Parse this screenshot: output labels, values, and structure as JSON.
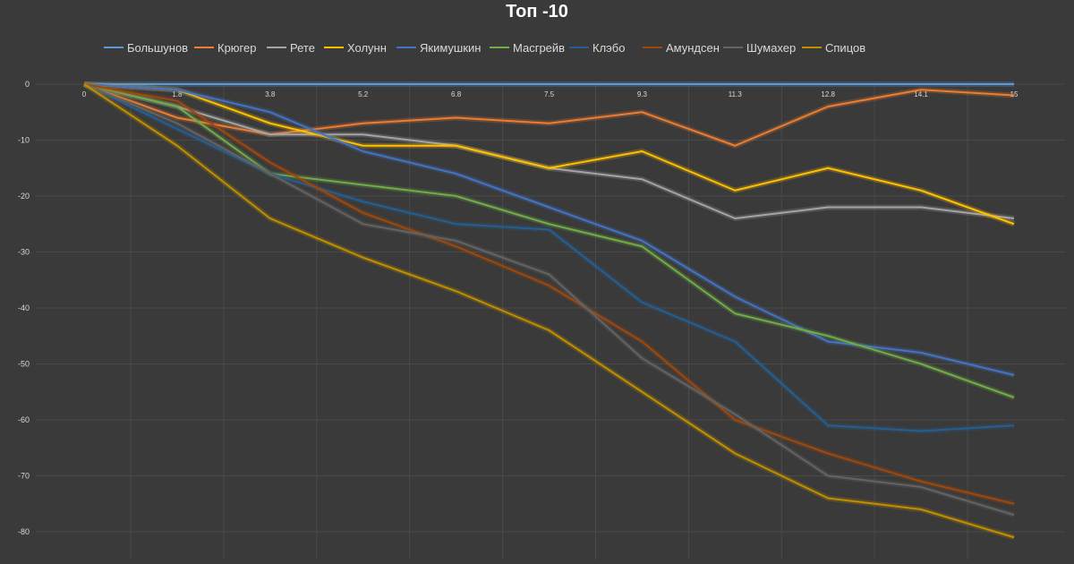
{
  "chart_data": {
    "type": "line",
    "title": "Топ -10",
    "xlabel": "",
    "ylabel": "",
    "x": [
      "0",
      "1.8",
      "3.8",
      "5.2",
      "6.8",
      "7.5",
      "9.3",
      "11.3",
      "12.8",
      "14.1",
      "15"
    ],
    "yticks": [
      "0",
      "-10",
      "-20",
      "-30",
      "-40",
      "-50",
      "-60",
      "-70",
      "-80"
    ],
    "ylim": [
      -85,
      0
    ],
    "grid": true,
    "legend_position": "top",
    "series": [
      {
        "name": "Большунов",
        "color": "#5b9bd5",
        "values": [
          0,
          0,
          0,
          0,
          0,
          0,
          0,
          0,
          0,
          0,
          0
        ]
      },
      {
        "name": "Крюгер",
        "color": "#ed7d31",
        "values": [
          0,
          -6,
          -9,
          -7,
          -6,
          -7,
          -5,
          -11,
          -4,
          -1,
          -2
        ]
      },
      {
        "name": "Рете",
        "color": "#a5a5a5",
        "values": [
          0,
          -4,
          -9,
          -9,
          -11,
          -15,
          -17,
          -24,
          -22,
          -22,
          -24
        ]
      },
      {
        "name": "Холунн",
        "color": "#ffc000",
        "values": [
          0,
          -1,
          -7,
          -11,
          -11,
          -15,
          -12,
          -19,
          -15,
          -19,
          -25
        ]
      },
      {
        "name": "Якимушкин",
        "color": "#4472c4",
        "values": [
          0,
          -1,
          -5,
          -12,
          -16,
          -22,
          -28,
          -38,
          -46,
          -48,
          -52
        ]
      },
      {
        "name": "Масгрейв",
        "color": "#70ad47",
        "values": [
          0,
          -4,
          -16,
          -18,
          -20,
          -25,
          -29,
          -41,
          -45,
          -50,
          -56
        ]
      },
      {
        "name": "Клэбо",
        "color": "#255e91",
        "values": [
          0,
          -8,
          -16,
          -21,
          -25,
          -26,
          -39,
          -46,
          -61,
          -62,
          -61
        ]
      },
      {
        "name": "Амундсен",
        "color": "#9e480e",
        "values": [
          0,
          -3,
          -14,
          -23,
          -29,
          -36,
          -46,
          -60,
          -66,
          -71,
          -75
        ]
      },
      {
        "name": "Шумахер",
        "color": "#636363",
        "values": [
          0,
          -7,
          -16,
          -25,
          -28,
          -34,
          -49,
          -59,
          -70,
          -72,
          -77
        ]
      },
      {
        "name": "Спицов",
        "color": "#bf8f00",
        "values": [
          0,
          -11,
          -24,
          -31,
          -37,
          -44,
          -55,
          -66,
          -74,
          -76,
          -81
        ]
      }
    ]
  }
}
